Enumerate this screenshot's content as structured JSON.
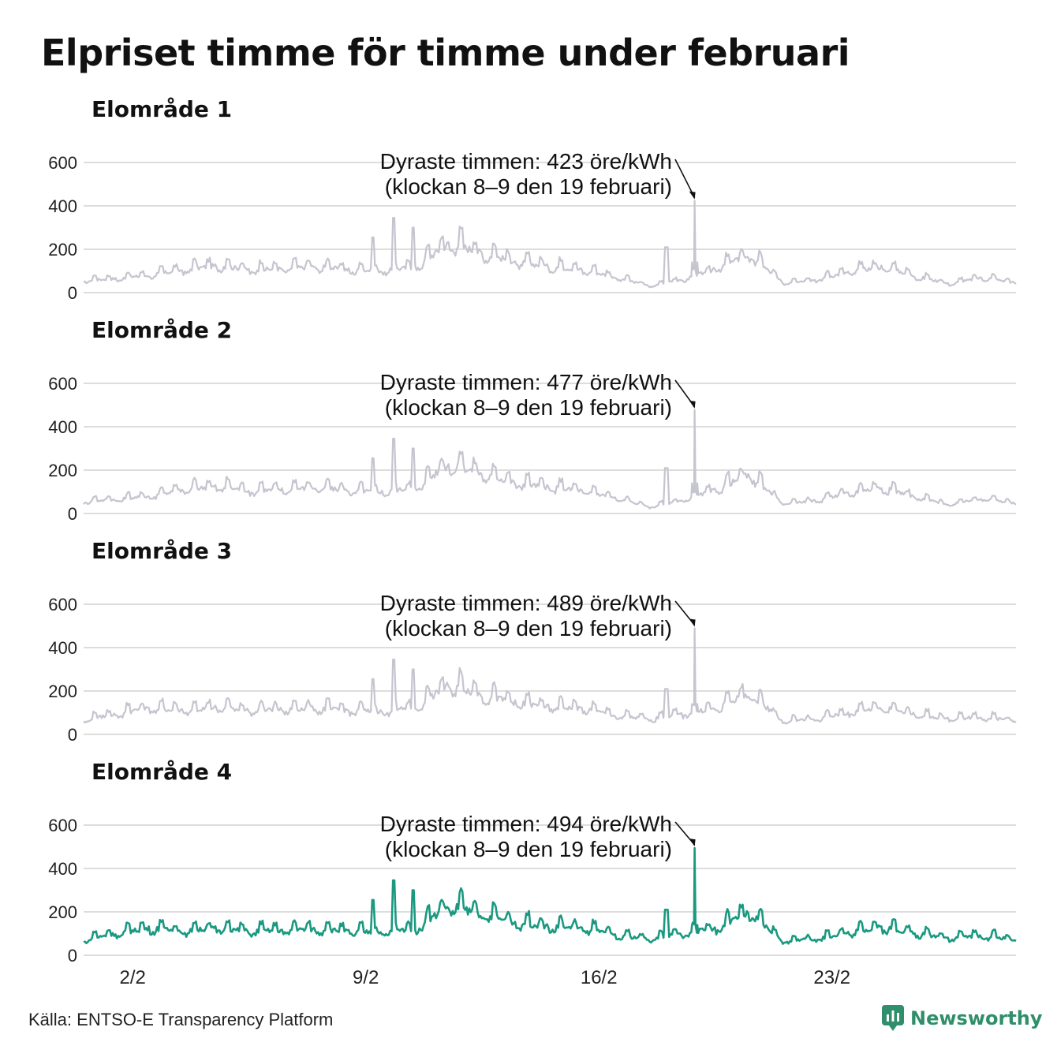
{
  "title": "Elpriset timme för timme under februari",
  "source": "Källa: ENTSO-E Transparency Platform",
  "brand": {
    "name": "Newsworthy",
    "icon": "newsworthy-logo-icon"
  },
  "colors": {
    "muted_line": "#c5c5d0",
    "highlight_line": "#1a9980",
    "grid": "#dddddd",
    "brand": "#2f8f6a"
  },
  "chart_data": [
    {
      "type": "line",
      "title": "Elområde 1",
      "ylabel": "öre/kWh",
      "ylim": [
        0,
        600
      ],
      "yticks": [
        0,
        200,
        400,
        600
      ],
      "xticks": [
        {
          "day": 2,
          "label": "2/2"
        },
        {
          "day": 9,
          "label": "9/2"
        },
        {
          "day": 16,
          "label": "16/2"
        },
        {
          "day": 23,
          "label": "23/2"
        }
      ],
      "highlight": false,
      "series_by_day": [
        55,
        65,
        80,
        105,
        125,
        105,
        110,
        120,
        105,
        100,
        120,
        230,
        180,
        140,
        120,
        105,
        70,
        30,
        60,
        110,
        175,
        45,
        60,
        95,
        120,
        75,
        40,
        70,
        45
      ],
      "annotation": {
        "line1": "Dyraste timmen: 423 öre/kWh",
        "line2": "(klockan 8–9 den 19 februari)",
        "peak_day": 19.35,
        "peak_value": 423
      }
    },
    {
      "type": "line",
      "title": "Elområde 2",
      "ylabel": "öre/kWh",
      "ylim": [
        0,
        600
      ],
      "yticks": [
        0,
        200,
        400,
        600
      ],
      "xticks": [
        {
          "day": 2,
          "label": "2/2"
        },
        {
          "day": 9,
          "label": "9/2"
        },
        {
          "day": 16,
          "label": "16/2"
        },
        {
          "day": 23,
          "label": "23/2"
        }
      ],
      "highlight": false,
      "series_by_day": [
        55,
        65,
        80,
        110,
        125,
        105,
        110,
        120,
        105,
        100,
        120,
        230,
        180,
        140,
        120,
        105,
        70,
        30,
        60,
        110,
        180,
        45,
        60,
        95,
        120,
        75,
        40,
        70,
        45
      ],
      "annotation": {
        "line1": "Dyraste timmen: 477 öre/kWh",
        "line2": "(klockan 8–9 den 19 februari)",
        "peak_day": 19.35,
        "peak_value": 477
      }
    },
    {
      "type": "line",
      "title": "Elområde 3",
      "ylabel": "öre/kWh",
      "ylim": [
        0,
        600
      ],
      "yticks": [
        0,
        200,
        400,
        600
      ],
      "xticks": [
        {
          "day": 2,
          "label": "2/2"
        },
        {
          "day": 9,
          "label": "9/2"
        },
        {
          "day": 16,
          "label": "16/2"
        },
        {
          "day": 23,
          "label": "23/2"
        }
      ],
      "highlight": false,
      "series_by_day": [
        65,
        95,
        120,
        110,
        125,
        110,
        115,
        120,
        110,
        105,
        125,
        230,
        180,
        145,
        125,
        120,
        85,
        70,
        95,
        120,
        190,
        60,
        70,
        100,
        125,
        90,
        70,
        80,
        60
      ],
      "annotation": {
        "line1": "Dyraste timmen: 489 öre/kWh",
        "line2": "(klockan 8–9 den 19 februari)",
        "peak_day": 19.35,
        "peak_value": 489
      }
    },
    {
      "type": "line",
      "title": "Elområde 4",
      "ylabel": "öre/kWh",
      "ylim": [
        0,
        600
      ],
      "yticks": [
        0,
        200,
        400,
        600
      ],
      "xticks": [
        {
          "day": 2,
          "label": "2/2"
        },
        {
          "day": 9,
          "label": "9/2"
        },
        {
          "day": 16,
          "label": "16/2"
        },
        {
          "day": 23,
          "label": "23/2"
        }
      ],
      "highlight": true,
      "series_by_day": [
        70,
        100,
        125,
        110,
        125,
        110,
        115,
        120,
        110,
        105,
        125,
        230,
        185,
        150,
        130,
        125,
        90,
        75,
        100,
        125,
        195,
        65,
        75,
        105,
        130,
        100,
        80,
        90,
        70
      ],
      "annotation": {
        "line1": "Dyraste timmen: 494 öre/kWh",
        "line2": "(klockan 8–9 den 19 februari)",
        "peak_day": 19.35,
        "peak_value": 494
      }
    }
  ]
}
